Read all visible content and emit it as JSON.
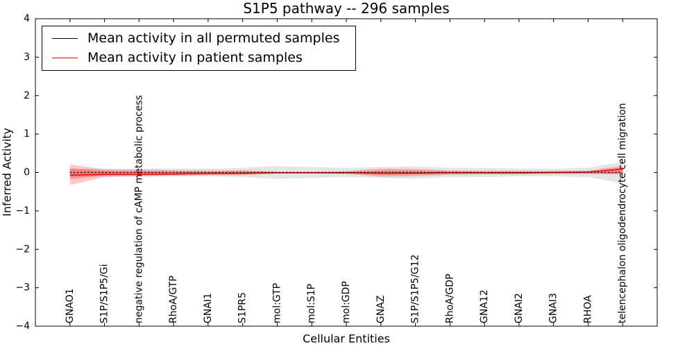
{
  "chart_data": {
    "type": "line",
    "title": "S1P5 pathway -- 296 samples",
    "xlabel": "Cellular Entities",
    "ylabel": "Inferred Activity",
    "ylim": [
      -4,
      4
    ],
    "yticks": [
      "4",
      "3",
      "2",
      "1",
      "0",
      "−1",
      "−2",
      "−3",
      "−4"
    ],
    "grid": false,
    "legend_position": "upper left",
    "x_tick_rotation": 90,
    "categories": [
      "GNAO1",
      "S1P/S1P5/Gi",
      "negative regulation of cAMP metabolic process",
      "RhoA/GTP",
      "GNAI1",
      "S1PR5",
      "mol:GTP",
      "mol:S1P",
      "mol:GDP",
      "GNAZ",
      "S1P/S1P5/G12",
      "RhoA/GDP",
      "GNA12",
      "GNAI2",
      "GNAI3",
      "RHOA",
      "telencephalon oligodendrocyte cell migration"
    ],
    "series": [
      {
        "name": "Mean activity in all permuted samples",
        "color": "#000000",
        "line_style": "dotted",
        "values": [
          0.0,
          0.0,
          0.0,
          0.0,
          0.0,
          0.0,
          0.0,
          0.0,
          0.0,
          0.0,
          0.0,
          0.0,
          0.0,
          0.0,
          0.0,
          0.0,
          0.0
        ],
        "bands": [
          {
            "color": "rgba(0,0,0,0.10)",
            "upper": [
              0.1,
              0.1,
              0.1,
              0.1,
              0.1,
              0.12,
              0.17,
              0.14,
              0.12,
              0.14,
              0.16,
              0.12,
              0.12,
              0.1,
              0.1,
              0.12,
              0.28
            ],
            "lower": [
              -0.1,
              -0.1,
              -0.1,
              -0.1,
              -0.1,
              -0.12,
              -0.17,
              -0.14,
              -0.12,
              -0.14,
              -0.16,
              -0.12,
              -0.12,
              -0.1,
              -0.1,
              -0.12,
              -0.28
            ]
          }
        ]
      },
      {
        "name": "Mean activity in patient samples",
        "color": "#ff0000",
        "line_style": "solid",
        "values": [
          -0.07,
          -0.05,
          -0.05,
          -0.04,
          -0.03,
          -0.02,
          -0.01,
          -0.01,
          -0.01,
          -0.02,
          -0.02,
          -0.01,
          -0.01,
          -0.01,
          0.0,
          0.01,
          0.09
        ],
        "bands": [
          {
            "color": "rgba(255,0,0,0.22)",
            "upper": [
              0.21,
              0.08,
              0.07,
              0.06,
              0.05,
              0.06,
              0.02,
              0.02,
              0.03,
              0.1,
              0.09,
              0.05,
              0.04,
              0.04,
              0.04,
              0.05,
              0.17
            ],
            "lower": [
              -0.33,
              -0.12,
              -0.1,
              -0.08,
              -0.07,
              -0.07,
              -0.03,
              -0.03,
              -0.04,
              -0.11,
              -0.1,
              -0.06,
              -0.05,
              -0.05,
              -0.04,
              -0.04,
              -0.05
            ]
          },
          {
            "color": "rgba(255,0,0,0.28)",
            "upper": [
              0.1,
              0.04,
              0.03,
              0.03,
              0.02,
              0.03,
              0.01,
              0.01,
              0.02,
              0.05,
              0.05,
              0.03,
              0.02,
              0.02,
              0.02,
              0.03,
              0.12
            ],
            "lower": [
              -0.17,
              -0.08,
              -0.07,
              -0.06,
              -0.05,
              -0.05,
              -0.02,
              -0.02,
              -0.02,
              -0.06,
              -0.05,
              -0.03,
              -0.03,
              -0.03,
              -0.02,
              -0.02,
              -0.03
            ]
          }
        ]
      }
    ]
  }
}
